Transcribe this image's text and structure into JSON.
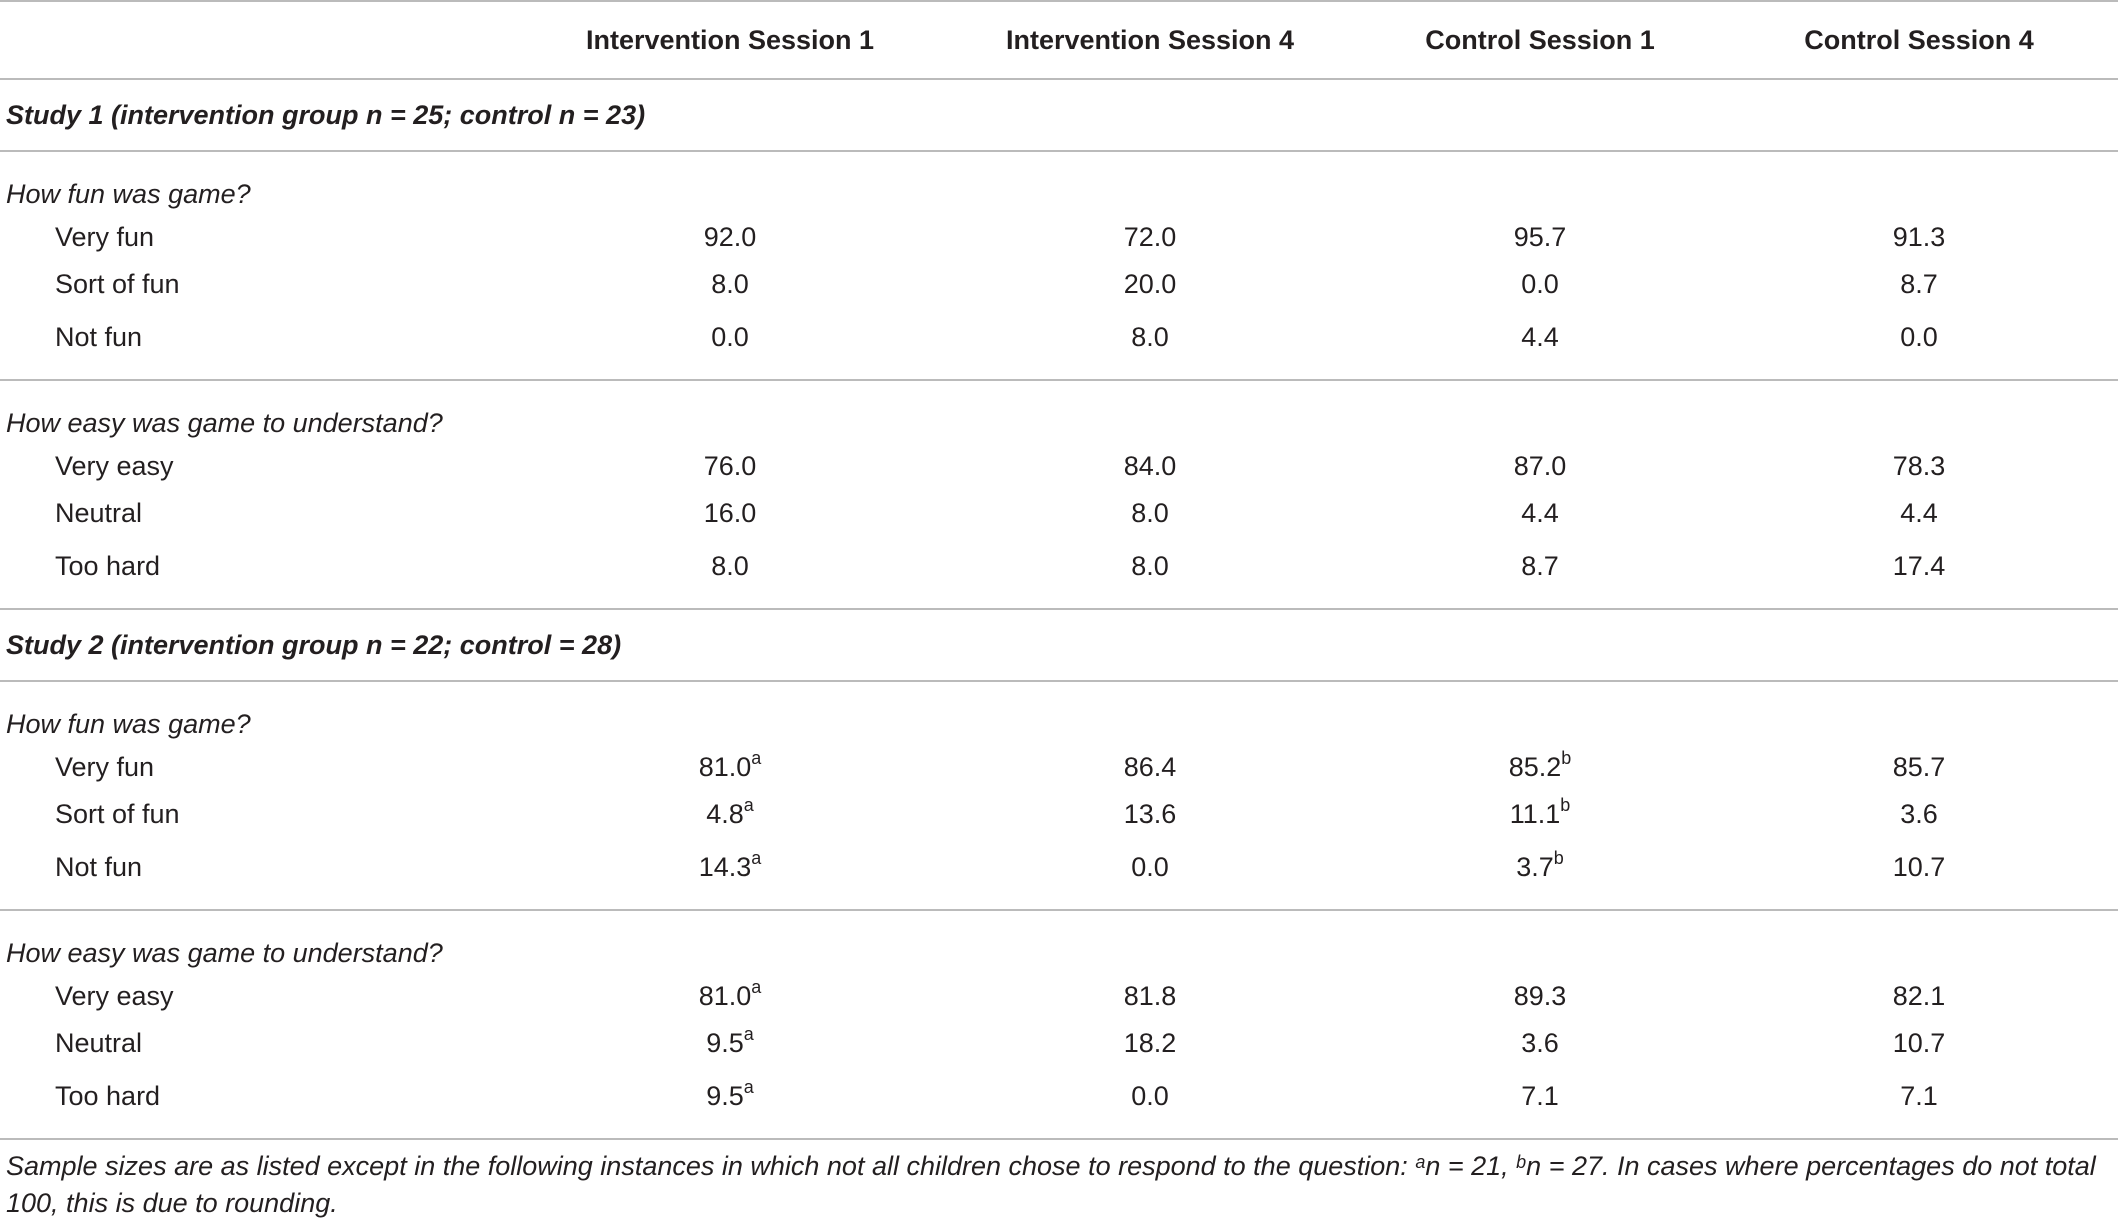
{
  "table": {
    "columns": [
      "Intervention Session 1",
      "Intervention Session 4",
      "Control Session 1",
      "Control Session 4"
    ],
    "sections": [
      {
        "title": "Study 1 (intervention group n = 25; control n = 23)",
        "groups": [
          {
            "question": "How fun was game?",
            "rows": [
              {
                "label": "Very fun",
                "cells": [
                  {
                    "value": "92.0"
                  },
                  {
                    "value": "72.0"
                  },
                  {
                    "value": "95.7"
                  },
                  {
                    "value": "91.3"
                  }
                ]
              },
              {
                "label": "Sort of fun",
                "cells": [
                  {
                    "value": "8.0"
                  },
                  {
                    "value": "20.0"
                  },
                  {
                    "value": "0.0"
                  },
                  {
                    "value": "8.7"
                  }
                ]
              },
              {
                "label": "Not fun",
                "cells": [
                  {
                    "value": "0.0"
                  },
                  {
                    "value": "8.0"
                  },
                  {
                    "value": "4.4"
                  },
                  {
                    "value": "0.0"
                  }
                ]
              }
            ]
          },
          {
            "question": "How easy was game to understand?",
            "rows": [
              {
                "label": "Very easy",
                "cells": [
                  {
                    "value": "76.0"
                  },
                  {
                    "value": "84.0"
                  },
                  {
                    "value": "87.0"
                  },
                  {
                    "value": "78.3"
                  }
                ]
              },
              {
                "label": "Neutral",
                "cells": [
                  {
                    "value": "16.0"
                  },
                  {
                    "value": "8.0"
                  },
                  {
                    "value": "4.4"
                  },
                  {
                    "value": "4.4"
                  }
                ]
              },
              {
                "label": "Too hard",
                "cells": [
                  {
                    "value": "8.0"
                  },
                  {
                    "value": "8.0"
                  },
                  {
                    "value": "8.7"
                  },
                  {
                    "value": "17.4"
                  }
                ]
              }
            ]
          }
        ]
      },
      {
        "title": "Study 2 (intervention group n = 22; control = 28)",
        "groups": [
          {
            "question": "How fun was game?",
            "rows": [
              {
                "label": "Very fun",
                "cells": [
                  {
                    "value": "81.0",
                    "note": "a"
                  },
                  {
                    "value": "86.4"
                  },
                  {
                    "value": "85.2",
                    "note": "b"
                  },
                  {
                    "value": "85.7"
                  }
                ]
              },
              {
                "label": "Sort of fun",
                "cells": [
                  {
                    "value": "4.8",
                    "note": "a"
                  },
                  {
                    "value": "13.6"
                  },
                  {
                    "value": "11.1",
                    "note": "b"
                  },
                  {
                    "value": "3.6"
                  }
                ]
              },
              {
                "label": "Not fun",
                "cells": [
                  {
                    "value": "14.3",
                    "note": "a"
                  },
                  {
                    "value": "0.0"
                  },
                  {
                    "value": "3.7",
                    "note": "b"
                  },
                  {
                    "value": "10.7"
                  }
                ]
              }
            ]
          },
          {
            "question": "How easy was game to understand?",
            "rows": [
              {
                "label": "Very easy",
                "cells": [
                  {
                    "value": "81.0",
                    "note": "a"
                  },
                  {
                    "value": "81.8"
                  },
                  {
                    "value": "89.3"
                  },
                  {
                    "value": "82.1"
                  }
                ]
              },
              {
                "label": "Neutral",
                "cells": [
                  {
                    "value": "9.5",
                    "note": "a"
                  },
                  {
                    "value": "18.2"
                  },
                  {
                    "value": "3.6"
                  },
                  {
                    "value": "10.7"
                  }
                ]
              },
              {
                "label": "Too hard",
                "cells": [
                  {
                    "value": "9.5",
                    "note": "a"
                  },
                  {
                    "value": "0.0"
                  },
                  {
                    "value": "7.1"
                  },
                  {
                    "value": "7.1"
                  }
                ]
              }
            ]
          }
        ]
      }
    ],
    "footnote": {
      "text_1": "Sample sizes are as listed except in the following instances in which not all children chose to respond to the question: ",
      "note_a": "a",
      "text_2": "n = 21, ",
      "note_b": "b",
      "text_3": "n = 27. In cases where percentages do not total 100, this is due to rounding."
    }
  }
}
